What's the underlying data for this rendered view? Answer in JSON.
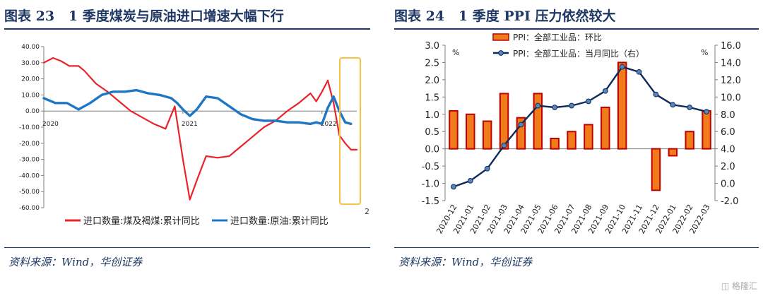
{
  "chart_data": [
    {
      "type": "line",
      "title_number": "图表 23",
      "title": "1 季度煤炭与原油进口增速大幅下行",
      "source": "资料来源：Wind，华创证券",
      "ylim": [
        -60,
        40
      ],
      "yticks": [
        "40.00",
        "30.00",
        "20.00",
        "10.00",
        "0.00",
        "-10.00",
        "-20.00",
        "-30.00",
        "-40.00",
        "-50.00",
        "-60.00"
      ],
      "year_labels": [
        {
          "label": "2020",
          "x": 0
        },
        {
          "label": "2021",
          "x": 12
        },
        {
          "label": "2022",
          "x": 24
        }
      ],
      "right_stub_label": "2",
      "xlim": [
        0,
        27
      ],
      "legend_position": "bottom",
      "colors": {
        "coal": "#e8232a",
        "oil": "#1f77c4",
        "highlight": "#f5c242",
        "axis": "#7f7f7f"
      },
      "series": [
        {
          "name": "进口数量:煤及褐煤:累计同比",
          "color": "#e8232a",
          "x": [
            0,
            0.8,
            1.5,
            2.2,
            3,
            3.5,
            4.5,
            5.5,
            6.5,
            7.5,
            8.5,
            9.5,
            10.5,
            11.3,
            12,
            12.6,
            13.2,
            14,
            15,
            16,
            17,
            18,
            19,
            20,
            21,
            22,
            23,
            23.5,
            24,
            24.5,
            25,
            25.5,
            26,
            26.5,
            27
          ],
          "values": [
            30,
            33,
            31,
            28,
            28,
            25,
            17,
            12,
            6,
            0,
            -4,
            -8,
            -11,
            3,
            -30,
            -55,
            -43,
            -28,
            -29,
            -28,
            -22,
            -16,
            -10,
            -6,
            0,
            5,
            11,
            6,
            12,
            19,
            5,
            -15,
            -20,
            -24,
            -24
          ]
        },
        {
          "name": "进口数量:原油:累计同比",
          "color": "#1f77c4",
          "x": [
            0,
            1,
            2,
            3,
            4,
            5,
            6,
            7,
            8,
            9,
            10,
            11,
            11.5,
            12,
            12.6,
            13.2,
            14,
            15,
            16,
            17,
            18,
            19,
            20,
            21,
            22,
            23,
            23.5,
            24,
            24.5,
            25,
            25.5,
            26,
            26.5
          ],
          "values": [
            8,
            5,
            5,
            1,
            5,
            10,
            12,
            12,
            13,
            11,
            10,
            8,
            5,
            1,
            -3,
            1,
            9,
            8,
            3,
            -2,
            -5,
            -6,
            -6,
            -7,
            -7,
            -8,
            -7,
            -8,
            2,
            9,
            0,
            -7,
            -8
          ]
        }
      ]
    },
    {
      "type": "bar",
      "title_number": "图表 24",
      "title": "1 季度 PPI 压力依然较大",
      "source": "资料来源：Wind，华创证券",
      "categories": [
        "2020-12",
        "2021-01",
        "2021-02",
        "2021-03",
        "2021-04",
        "2021-05",
        "2021-06",
        "2021-07",
        "2021-08",
        "2021-09",
        "2021-10",
        "2021-11",
        "2021-12",
        "2022-01",
        "2022-02",
        "2022-03"
      ],
      "ylim": [
        -1.5,
        3.0
      ],
      "y2lim": [
        -2.0,
        16.0
      ],
      "yticks": [
        "3.0",
        "2.5",
        "2.0",
        "1.5",
        "1.0",
        "0.5",
        "0.0",
        "-0.5",
        "-1.0",
        "-1.5"
      ],
      "y2ticks": [
        "16.0",
        "14.0",
        "12.0",
        "10.0",
        "8.0",
        "6.0",
        "4.0",
        "2.0",
        "0.0",
        "-2.0"
      ],
      "ylabel": "%",
      "y2label": "%",
      "legend_position": "top",
      "colors": {
        "bar_fill": "#f07b1a",
        "bar_edge": "#c00000",
        "line": "#0d2b5c",
        "marker": "#5b83b7",
        "axis": "#7f7f7f"
      },
      "series": [
        {
          "name": "PPI：全部工业品：环比",
          "axis": "left",
          "kind": "bar",
          "values": [
            1.1,
            1.0,
            0.8,
            1.6,
            0.9,
            1.6,
            0.3,
            0.5,
            0.7,
            1.2,
            2.5,
            0.0,
            -1.2,
            -0.2,
            0.5,
            1.1
          ]
        },
        {
          "name": "PPI：全部工业品：当月同比（右）",
          "axis": "right",
          "kind": "line",
          "values": [
            -0.4,
            0.3,
            1.7,
            4.4,
            6.8,
            9.0,
            8.8,
            9.0,
            9.5,
            10.7,
            13.5,
            12.9,
            10.3,
            9.1,
            8.8,
            8.3
          ]
        }
      ]
    }
  ]
}
